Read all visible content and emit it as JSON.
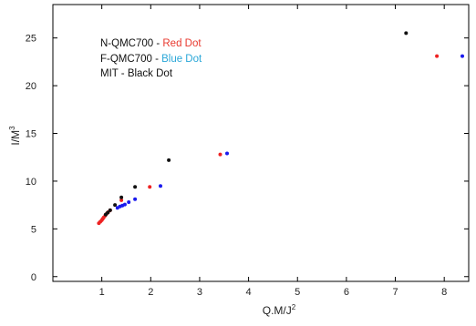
{
  "chart_data": {
    "type": "scatter",
    "xlabel_base": "Q.M/J",
    "xlabel_exp": "2",
    "ylabel_base": "I/M",
    "ylabel_exp": "3",
    "xlim": [
      0,
      8.5
    ],
    "ylim": [
      -0.5,
      28.5
    ],
    "xticks": [
      1,
      2,
      3,
      4,
      5,
      6,
      7,
      8
    ],
    "yticks": [
      0,
      5,
      10,
      15,
      20,
      25
    ],
    "grid": false,
    "legend_position": "top-left",
    "legend": [
      {
        "prefix": "N-QMC700 - ",
        "label": "Red Dot",
        "color": "#e8392f"
      },
      {
        "prefix": "F-QMC700 - ",
        "label": "Blue Dot",
        "color": "#2aa7d8"
      },
      {
        "prefix": "MIT  -  ",
        "label": "Black Dot",
        "color": "#111111"
      }
    ],
    "series": [
      {
        "color": "#ee2222",
        "points": [
          [
            0.94,
            5.6
          ],
          [
            0.97,
            5.75
          ],
          [
            1.0,
            5.9
          ],
          [
            1.02,
            6.05
          ],
          [
            1.04,
            6.2
          ],
          [
            1.07,
            6.4
          ],
          [
            1.1,
            6.6
          ],
          [
            1.13,
            6.75
          ],
          [
            1.17,
            6.95
          ],
          [
            1.4,
            8.0
          ],
          [
            1.98,
            9.4
          ],
          [
            3.42,
            12.8
          ],
          [
            7.85,
            23.1
          ]
        ]
      },
      {
        "color": "#1a1aee",
        "points": [
          [
            1.32,
            7.2
          ],
          [
            1.37,
            7.35
          ],
          [
            1.42,
            7.45
          ],
          [
            1.47,
            7.55
          ],
          [
            1.55,
            7.8
          ],
          [
            1.68,
            8.1
          ],
          [
            2.2,
            9.5
          ],
          [
            3.56,
            12.9
          ],
          [
            8.37,
            23.1
          ]
        ]
      },
      {
        "color": "#111111",
        "points": [
          [
            1.08,
            6.5
          ],
          [
            1.12,
            6.7
          ],
          [
            1.17,
            6.95
          ],
          [
            1.27,
            7.5
          ],
          [
            1.4,
            8.3
          ],
          [
            1.68,
            9.4
          ],
          [
            2.37,
            12.2
          ],
          [
            7.22,
            25.5
          ]
        ]
      }
    ]
  }
}
